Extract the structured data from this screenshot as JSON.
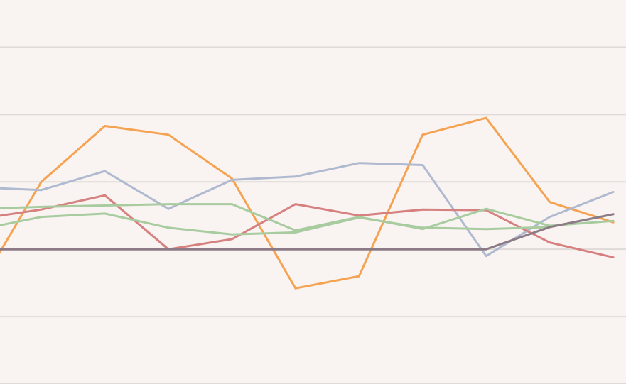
{
  "chart_data": {
    "type": "line",
    "title": "",
    "xlabel": "",
    "ylabel": "",
    "x": [
      0,
      1,
      2,
      3,
      4,
      5,
      6,
      7,
      8,
      9,
      10
    ],
    "xlim": [
      0.35,
      10.2
    ],
    "ylim": [
      -2.0,
      3.7
    ],
    "yticks": [
      -2,
      -1,
      0,
      1,
      2,
      3
    ],
    "grid": true,
    "legend": "none",
    "series": [
      {
        "color": "#f5a352",
        "values": [
          -0.6,
          1.0,
          1.83,
          1.7,
          1.05,
          -0.58,
          -0.4,
          1.7,
          1.95,
          0.7,
          0.4
        ]
      },
      {
        "color": "#afbad0",
        "values": [
          0.92,
          0.88,
          1.16,
          0.6,
          1.03,
          1.08,
          1.28,
          1.25,
          -0.1,
          0.48,
          0.85
        ]
      },
      {
        "color": "#d68080",
        "values": [
          0.45,
          0.59,
          0.8,
          0.0,
          0.15,
          0.67,
          0.5,
          0.59,
          0.58,
          0.1,
          -0.12
        ]
      },
      {
        "color": "#a8cca0",
        "values": [
          0.29,
          0.48,
          0.53,
          0.32,
          0.22,
          0.25,
          0.47,
          0.32,
          0.3,
          0.33,
          0.52
        ]
      },
      {
        "color": "#a8cca0",
        "values": [
          0.6,
          0.63,
          0.65,
          0.67,
          0.67,
          0.28,
          0.48,
          0.3,
          0.6,
          0.35,
          0.42
        ]
      },
      {
        "color": "#8c7b86",
        "values": [
          0.0,
          0.0,
          0.0,
          0.0,
          0.0,
          0.0,
          0.0,
          0.0,
          0.0,
          0.33,
          0.52
        ]
      }
    ]
  }
}
